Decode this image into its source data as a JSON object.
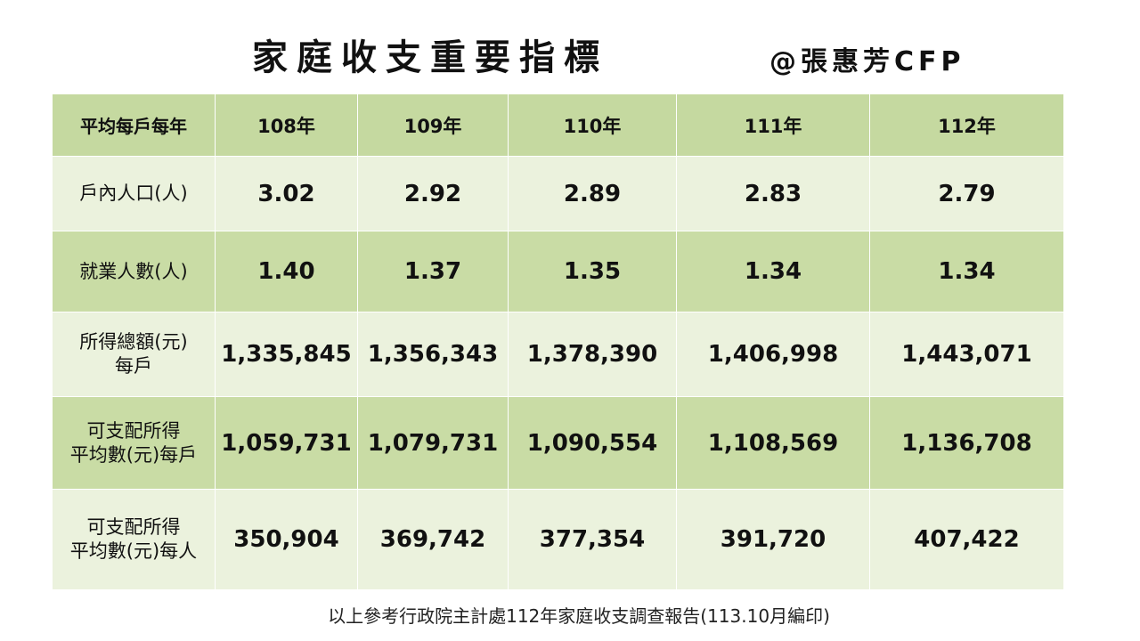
{
  "header": {
    "title": "家庭收支重要指標",
    "author": "@張惠芳CFP"
  },
  "table": {
    "corner_label": "平均每戶每年",
    "years": [
      "108年",
      "109年",
      "110年",
      "111年",
      "112年"
    ],
    "rows": [
      {
        "label_lines": [
          "戶內人口(人)"
        ],
        "values": [
          "3.02",
          "2.92",
          "2.89",
          "2.83",
          "2.79"
        ]
      },
      {
        "label_lines": [
          "就業人數(人)"
        ],
        "values": [
          "1.40",
          "1.37",
          "1.35",
          "1.34",
          "1.34"
        ]
      },
      {
        "label_lines": [
          "所得總額(元)",
          "每戶"
        ],
        "values": [
          "1,335,845",
          "1,356,343",
          "1,378,390",
          "1,406,998",
          "1,443,071"
        ]
      },
      {
        "label_lines": [
          "可支配所得",
          "平均數(元)每戶"
        ],
        "values": [
          "1,059,731",
          "1,079,731",
          "1,090,554",
          "1,108,569",
          "1,136,708"
        ]
      },
      {
        "label_lines": [
          "可支配所得",
          "平均數(元)每人"
        ],
        "values": [
          "350,904",
          "369,742",
          "377,354",
          "391,720",
          "407,422"
        ]
      }
    ]
  },
  "footer": {
    "note": "以上參考行政院主計處112年家庭收支調查報告(113.10月編印)"
  },
  "colors": {
    "header_row": "#c5d9a0",
    "light_row": "#ebf2dd",
    "dark_row": "#c9dca5"
  }
}
